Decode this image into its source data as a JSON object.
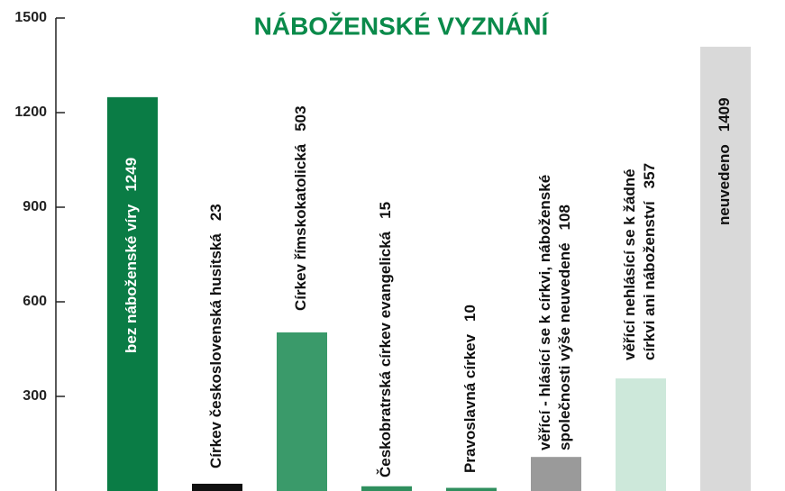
{
  "chart_data": {
    "type": "bar",
    "title": "NÁBOŽENSKÉ VYZNÁNÍ",
    "categories": [
      [
        "bez náboženské víry"
      ],
      [
        "Církev československá husitská"
      ],
      [
        "Církev římskokatolická"
      ],
      [
        "Českobratrská církev evangelická"
      ],
      [
        "Pravoslavná církev"
      ],
      [
        "věřící - hlásící se k církvi, náboženské",
        "společnosti výše neuvedené"
      ],
      [
        "věřící nehlásící se k žádné",
        "církvi ani náboženství"
      ],
      [
        "neuvedeno"
      ]
    ],
    "values": [
      1249,
      23,
      503,
      15,
      10,
      108,
      357,
      1409
    ],
    "colors": [
      "#0a7c45",
      "#111111",
      "#3a9a6a",
      "#2f8f5e",
      "#2f8f5e",
      "#9a9a9a",
      "#cde8da",
      "#d9d9d9"
    ],
    "ylim": [
      0,
      1500
    ],
    "yticks": [
      300,
      600,
      900,
      1200,
      1500
    ],
    "grid": false
  }
}
